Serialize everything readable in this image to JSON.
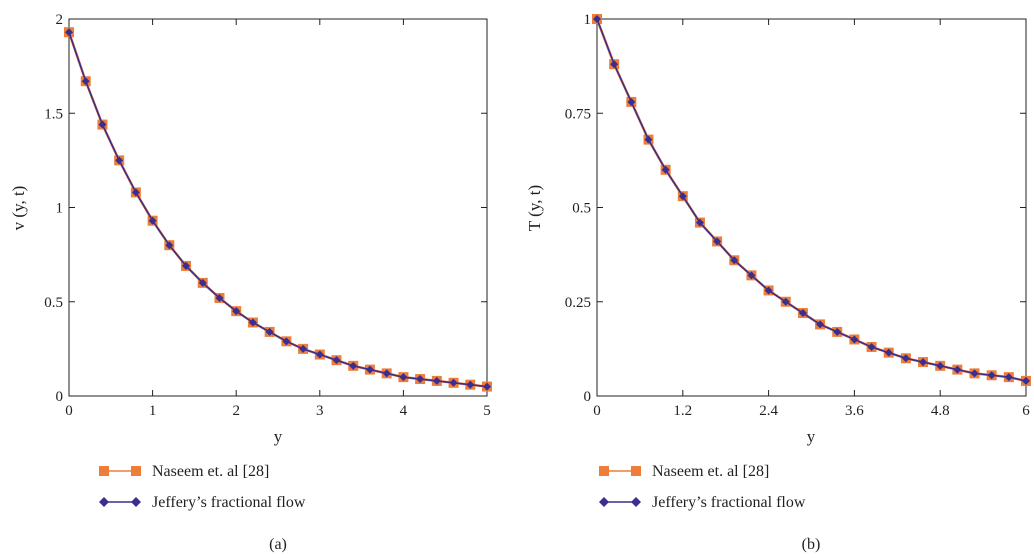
{
  "figure": {
    "panels": [
      {
        "caption": "(a)"
      },
      {
        "caption": "(b)"
      }
    ]
  },
  "colors": {
    "series_a": "#ef7d3a",
    "series_b": "#3a2f8f",
    "axis": "#231f20"
  },
  "chart_data": [
    {
      "type": "line",
      "title": "",
      "xlabel": "y",
      "ylabel": "v (y, t)",
      "xlim": [
        0,
        5
      ],
      "ylim": [
        0,
        2
      ],
      "xticks": [
        0,
        1,
        2,
        3,
        4,
        5
      ],
      "yticks": [
        0,
        0.5,
        1,
        1.5,
        2
      ],
      "x_tick_labels": [
        "0",
        "1",
        "2",
        "3",
        "4",
        "5"
      ],
      "y_tick_labels": [
        "0",
        "0.5",
        "1",
        "1.5",
        "2"
      ],
      "grid": false,
      "legend_position": "below",
      "x": [
        0,
        0.2,
        0.4,
        0.6,
        0.8,
        1.0,
        1.2,
        1.4,
        1.6,
        1.8,
        2.0,
        2.2,
        2.4,
        2.6,
        2.8,
        3.0,
        3.2,
        3.4,
        3.6,
        3.8,
        4.0,
        4.2,
        4.4,
        4.6,
        4.8,
        5.0
      ],
      "series": [
        {
          "name": "Naseem et. al [28]",
          "marker": "square",
          "values": [
            1.93,
            1.67,
            1.44,
            1.25,
            1.08,
            0.93,
            0.8,
            0.69,
            0.6,
            0.52,
            0.45,
            0.39,
            0.34,
            0.29,
            0.25,
            0.22,
            0.19,
            0.16,
            0.14,
            0.12,
            0.1,
            0.09,
            0.08,
            0.07,
            0.06,
            0.05
          ]
        },
        {
          "name": "Jeffery’s fractional flow",
          "marker": "diamond",
          "values": [
            1.93,
            1.67,
            1.44,
            1.25,
            1.08,
            0.93,
            0.8,
            0.69,
            0.6,
            0.52,
            0.45,
            0.39,
            0.34,
            0.29,
            0.25,
            0.22,
            0.19,
            0.16,
            0.14,
            0.12,
            0.1,
            0.09,
            0.08,
            0.07,
            0.06,
            0.05
          ]
        }
      ]
    },
    {
      "type": "line",
      "title": "",
      "xlabel": "y",
      "ylabel": "T (y, t)",
      "xlim": [
        0,
        6
      ],
      "ylim": [
        0,
        1
      ],
      "xticks": [
        0,
        1.2,
        2.4,
        3.6,
        4.8,
        6
      ],
      "yticks": [
        0,
        0.25,
        0.5,
        0.75,
        1
      ],
      "x_tick_labels": [
        "0",
        "1.2",
        "2.4",
        "3.6",
        "4.8",
        "6"
      ],
      "y_tick_labels": [
        "0",
        "0.25",
        "0.5",
        "0.75",
        "1"
      ],
      "grid": false,
      "legend_position": "below",
      "x": [
        0,
        0.24,
        0.48,
        0.72,
        0.96,
        1.2,
        1.44,
        1.68,
        1.92,
        2.16,
        2.4,
        2.64,
        2.88,
        3.12,
        3.36,
        3.6,
        3.84,
        4.08,
        4.32,
        4.56,
        4.8,
        5.04,
        5.28,
        5.52,
        5.76,
        6.0
      ],
      "series": [
        {
          "name": "Naseem et. al [28]",
          "marker": "square",
          "values": [
            1.0,
            0.88,
            0.78,
            0.68,
            0.6,
            0.53,
            0.46,
            0.41,
            0.36,
            0.32,
            0.28,
            0.25,
            0.22,
            0.19,
            0.17,
            0.15,
            0.13,
            0.115,
            0.1,
            0.09,
            0.08,
            0.07,
            0.06,
            0.055,
            0.05,
            0.04
          ]
        },
        {
          "name": "Jeffery’s fractional flow",
          "marker": "diamond",
          "values": [
            1.0,
            0.88,
            0.78,
            0.68,
            0.6,
            0.53,
            0.46,
            0.41,
            0.36,
            0.32,
            0.28,
            0.25,
            0.22,
            0.19,
            0.17,
            0.15,
            0.13,
            0.115,
            0.1,
            0.09,
            0.08,
            0.07,
            0.06,
            0.055,
            0.05,
            0.04
          ]
        }
      ]
    }
  ]
}
